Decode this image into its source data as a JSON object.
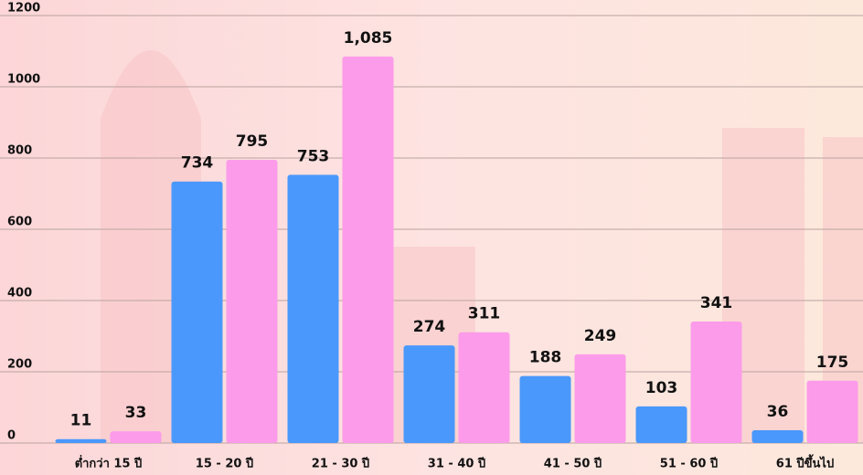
{
  "chart_data": {
    "type": "bar",
    "categories": [
      "ต่ำกว่า 15 ปี",
      "15 - 20 ปี",
      "21 - 30 ปี",
      "31 - 40 ปี",
      "41 - 50 ปี",
      "51 - 60 ปี",
      "61 ปีขึ้นไป"
    ],
    "series": [
      {
        "color": "#4a98fb",
        "values": [
          11,
          734,
          753,
          274,
          188,
          103,
          36
        ]
      },
      {
        "color": "#fc9be9",
        "values": [
          33,
          795,
          1085,
          311,
          249,
          341,
          175
        ],
        "value_labels": [
          "33",
          "795",
          "1,085",
          "311",
          "249",
          "341",
          "175"
        ]
      }
    ],
    "ylim": [
      0,
      1200
    ],
    "yticks": [
      0,
      200,
      400,
      600,
      800,
      1000,
      1200
    ],
    "grid": true
  }
}
